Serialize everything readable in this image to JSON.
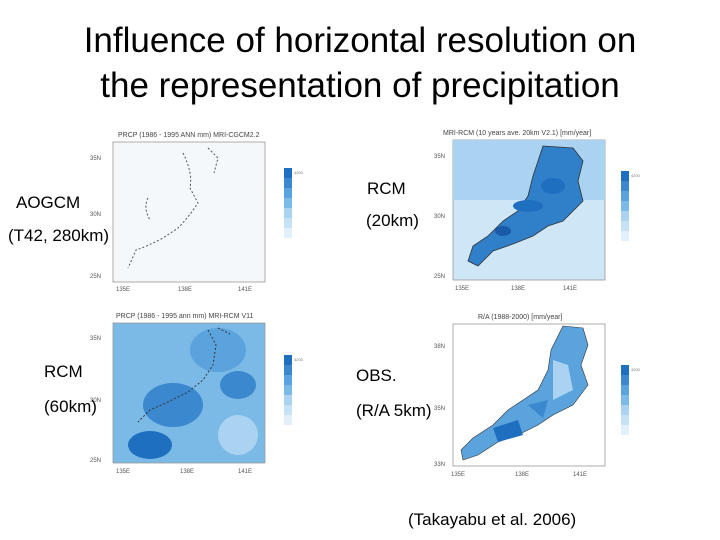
{
  "slide": {
    "title_line1": "Influence of horizontal resolution on",
    "title_line2": "the representation of precipitation",
    "citation": "(Takayabu et al. 2006)"
  },
  "panels": [
    {
      "name_label": "AOGCM",
      "res_label": "(T42, 280km)",
      "header": "PRCP (1986 - 1995 ANN mm) MRI-CGCM2.2",
      "lat_ticks": [
        "35N",
        "30N",
        "25N"
      ],
      "lon_ticks": [
        "135E",
        "138E",
        "141E"
      ],
      "legend_ticks": [
        "4200",
        "3000",
        "2500",
        "2000",
        "1800",
        "1500",
        "1200",
        "1000"
      ]
    },
    {
      "name_label": "RCM",
      "res_label": "(20km)",
      "header": "MRI-RCM (10 years ave. 20km V2.1) [mm/year]",
      "lat_ticks": [
        "35N",
        "30N",
        "25N"
      ],
      "lon_ticks": [
        "135E",
        "138E",
        "141E"
      ],
      "legend_ticks": [
        "4200",
        "3000",
        "2500",
        "2000",
        "1800",
        "1500",
        "1200",
        "1000"
      ]
    },
    {
      "name_label": "RCM",
      "res_label": "(60km)",
      "header": "PRCP (1986 - 1995 ann mm) MRI-RCM V11",
      "lat_ticks": [
        "35N",
        "30N",
        "25N"
      ],
      "lon_ticks": [
        "135E",
        "138E",
        "141E"
      ],
      "legend_ticks": [
        "4200",
        "3000",
        "2500",
        "2000",
        "1800",
        "1500",
        "1200",
        "1000"
      ]
    },
    {
      "name_label": "OBS.",
      "res_label": "(R/A 5km)",
      "header": "R/A (1988-2000) [mm/year]",
      "lat_ticks": [
        "38N",
        "35N",
        "33N"
      ],
      "lon_ticks": [
        "135E",
        "138E",
        "141E"
      ],
      "legend_ticks": [
        "4200",
        "3000",
        "2500",
        "2000",
        "1800",
        "1500",
        "1200",
        "1000"
      ]
    }
  ],
  "colors": {
    "land_dark": "#1f6fc0",
    "land_mid": "#5aa3dc",
    "land_light": "#a9d3f0",
    "sea_light": "#e8f4fc",
    "coast": "#333333"
  }
}
